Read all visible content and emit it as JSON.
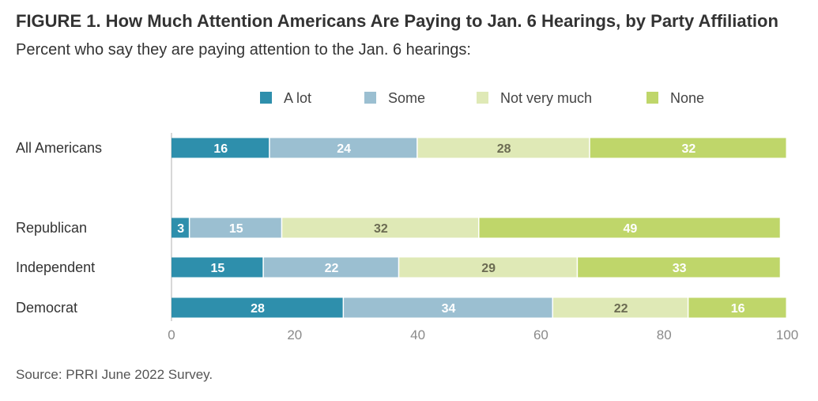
{
  "chart_data": {
    "type": "bar",
    "orientation": "horizontal",
    "stacked": true,
    "title": "FIGURE 1. How Much Attention Americans Are Paying to Jan. 6 Hearings, by Party Affiliation",
    "subtitle": "Percent who say they are paying attention to the Jan. 6 hearings:",
    "source": "Source: PRRI June 2022 Survey.",
    "categories": [
      "All Americans",
      "Republican",
      "Independent",
      "Democrat"
    ],
    "series": [
      {
        "name": "A lot",
        "color": "#2e8fac",
        "label_color": "#ffffff",
        "values": [
          16,
          3,
          15,
          28
        ]
      },
      {
        "name": "Some",
        "color": "#9bbfd1",
        "label_color": "#ffffff",
        "values": [
          24,
          15,
          22,
          34
        ]
      },
      {
        "name": "Not very much",
        "color": "#dfe9b6",
        "label_color": "#6b6b52",
        "values": [
          28,
          32,
          29,
          22
        ]
      },
      {
        "name": "None",
        "color": "#bfd66a",
        "label_color": "#ffffff",
        "values": [
          32,
          49,
          33,
          16
        ]
      }
    ],
    "xlim": [
      0,
      100
    ],
    "xticks": [
      0,
      20,
      40,
      60,
      80,
      100
    ],
    "grid": false,
    "legend_position": "top"
  }
}
